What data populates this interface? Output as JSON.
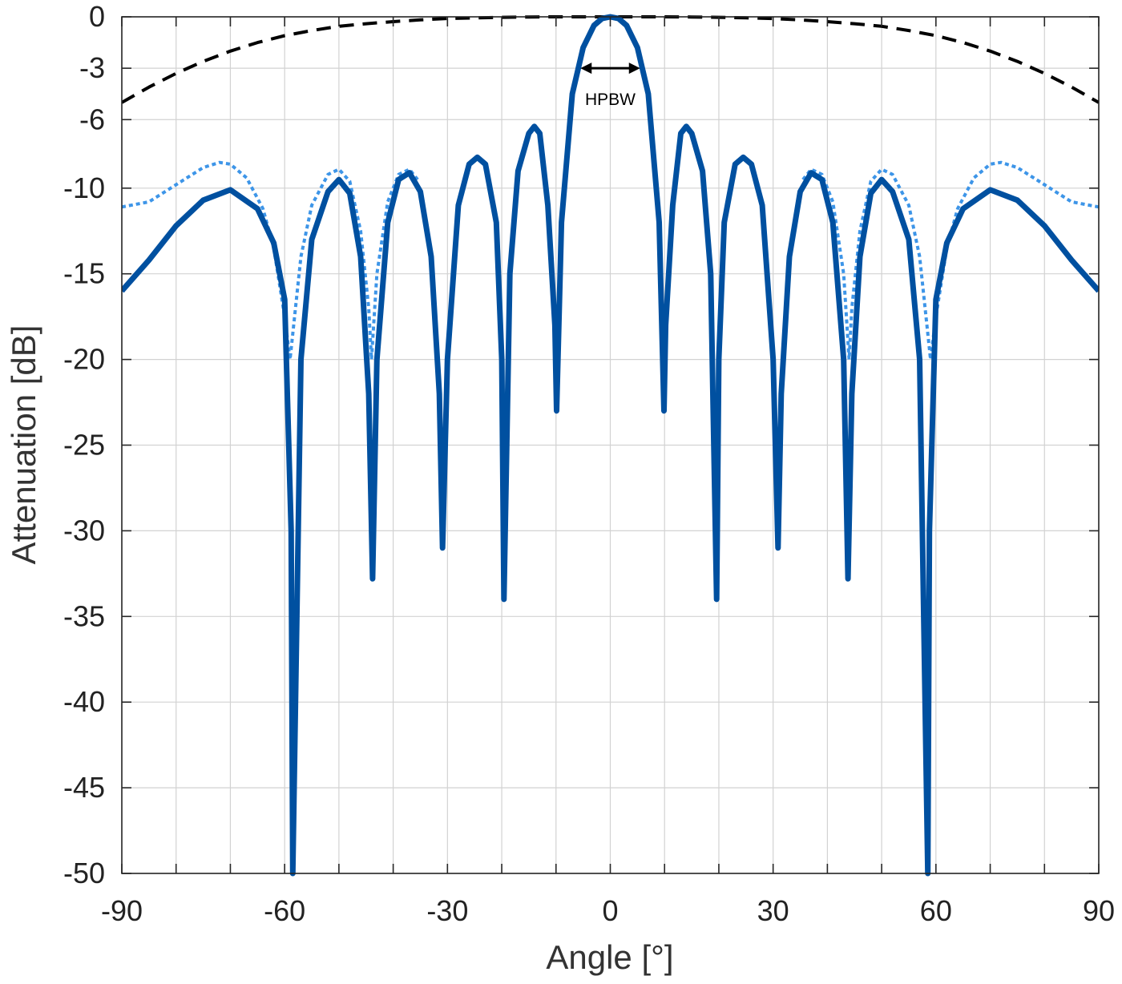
{
  "chart_data": {
    "type": "line",
    "xlabel": "Angle [°]",
    "ylabel": "Attenuation [dB]",
    "xlim": [
      -90,
      90
    ],
    "ylim": [
      -50,
      0
    ],
    "xticks": [
      -90,
      -60,
      -30,
      0,
      30,
      60,
      90
    ],
    "xtick_labels": [
      "-90",
      "-60",
      "-30",
      "0",
      "30",
      "60",
      "90"
    ],
    "yticks": [
      0,
      -3,
      -6,
      -10,
      -15,
      -20,
      -25,
      -30,
      -35,
      -40,
      -45,
      -50
    ],
    "ytick_labels": [
      "0",
      "-3",
      "-6",
      "-10",
      "-15",
      "-20",
      "-25",
      "-30",
      "-35",
      "-40",
      "-45",
      "-50"
    ],
    "x_minor_grid_step": 10,
    "grid": true,
    "annotation": {
      "text": "HPBW",
      "from_x": -5.5,
      "to_x": 5.5,
      "y": -3
    },
    "series": [
      {
        "style": "solid",
        "color": "#0050A0",
        "x": [
          -90,
          -85,
          -80,
          -75,
          -70,
          -65,
          -62,
          -60,
          -58.8,
          -58.5,
          -57,
          -55,
          -52,
          -50,
          -48,
          -46,
          -44.5,
          -43.8,
          -43,
          -41,
          -39,
          -37,
          -35,
          -33,
          -31.5,
          -30.9,
          -30,
          -28,
          -26,
          -24.5,
          -23,
          -21,
          -20,
          -19.6,
          -18.5,
          -17,
          -15,
          -14,
          -13,
          -11.5,
          -10.2,
          -9.9,
          -9,
          -7,
          -5,
          -3,
          -1.5,
          0,
          1.5,
          3,
          5,
          7,
          9,
          9.9,
          10.2,
          11.5,
          13,
          14,
          15,
          17,
          18.5,
          19.6,
          20,
          21,
          23,
          24.5,
          26,
          28,
          30,
          30.9,
          31.5,
          33,
          35,
          37,
          39,
          41,
          43,
          43.8,
          44.5,
          46,
          48,
          50,
          52,
          55,
          57,
          58.5,
          58.8,
          60,
          62,
          65,
          70,
          75,
          80,
          85,
          90
        ],
        "y": [
          -16,
          -14.2,
          -12.2,
          -10.7,
          -10.1,
          -11.2,
          -13.2,
          -16.5,
          -30,
          -50,
          -20,
          -13,
          -10.2,
          -9.5,
          -10.3,
          -14,
          -22,
          -32.8,
          -20,
          -12,
          -9.5,
          -9.1,
          -10.2,
          -14,
          -22,
          -31,
          -20,
          -11,
          -8.6,
          -8.2,
          -8.6,
          -12,
          -20,
          -34,
          -15,
          -9,
          -6.8,
          -6.4,
          -6.8,
          -11,
          -18,
          -23,
          -12,
          -4.5,
          -1.8,
          -0.5,
          -0.1,
          0,
          -0.1,
          -0.5,
          -1.8,
          -4.5,
          -12,
          -23,
          -18,
          -11,
          -6.8,
          -6.4,
          -6.8,
          -9,
          -15,
          -34,
          -20,
          -12,
          -8.6,
          -8.2,
          -8.6,
          -11,
          -20,
          -31,
          -22,
          -14,
          -10.2,
          -9.1,
          -9.5,
          -12,
          -20,
          -32.8,
          -22,
          -14,
          -10.3,
          -9.5,
          -10.2,
          -13,
          -20,
          -50,
          -30,
          -16.5,
          -13.2,
          -11.2,
          -10.1,
          -10.7,
          -12.2,
          -14.2,
          -16
        ]
      },
      {
        "style": "dotted",
        "color": "#3D95E8",
        "x": [
          -90,
          -85,
          -80,
          -75,
          -72,
          -70,
          -67,
          -64,
          -62,
          -60,
          -59,
          -57,
          -55,
          -52,
          -50,
          -48,
          -46,
          -44.5,
          -44,
          -43,
          -41,
          -39,
          -37,
          -35.5
        ],
        "y": [
          -11.1,
          -10.8,
          -9.8,
          -8.8,
          -8.5,
          -8.6,
          -9.4,
          -11.2,
          -13.5,
          -17.5,
          -20,
          -14,
          -11,
          -9.2,
          -8.9,
          -9.6,
          -12.5,
          -17,
          -20,
          -15,
          -10.8,
          -9.2,
          -8.9,
          -9.5
        ]
      },
      {
        "style": "dotted",
        "color": "#3D95E8",
        "x": [
          35.5,
          37,
          39,
          41,
          43,
          44,
          44.5,
          46,
          48,
          50,
          52,
          55,
          57,
          59,
          60,
          62,
          64,
          67,
          70,
          72,
          75,
          80,
          85,
          90
        ],
        "y": [
          -9.5,
          -8.9,
          -9.2,
          -10.8,
          -15,
          -20,
          -17,
          -12.5,
          -9.6,
          -8.9,
          -9.2,
          -11,
          -14,
          -20,
          -17.5,
          -13.5,
          -11.2,
          -9.4,
          -8.6,
          -8.5,
          -8.8,
          -9.8,
          -10.8,
          -11.1
        ]
      },
      {
        "style": "dashed",
        "color": "#000000",
        "x": [
          -90,
          -85,
          -80,
          -75,
          -70,
          -65,
          -60,
          -55,
          -50,
          -45,
          -40,
          -35,
          -30,
          -25,
          -20,
          -15,
          -10,
          -5,
          0,
          5,
          10,
          15,
          20,
          25,
          30,
          35,
          40,
          45,
          50,
          55,
          60,
          65,
          70,
          75,
          80,
          85,
          90
        ],
        "y": [
          -5,
          -4.1,
          -3.3,
          -2.6,
          -2,
          -1.5,
          -1.1,
          -0.8,
          -0.55,
          -0.4,
          -0.28,
          -0.18,
          -0.1,
          -0.06,
          -0.03,
          -0.01,
          0,
          0,
          0,
          0,
          0,
          -0.01,
          -0.03,
          -0.06,
          -0.1,
          -0.18,
          -0.28,
          -0.4,
          -0.55,
          -0.8,
          -1.1,
          -1.5,
          -2,
          -2.6,
          -3.3,
          -4.1,
          -5
        ]
      }
    ]
  }
}
